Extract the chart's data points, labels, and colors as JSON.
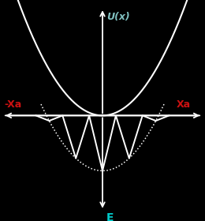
{
  "background_color": "#000000",
  "parabola_color": "#ffffff",
  "comb_color": "#ffffff",
  "dotted_parabola_color": "#ffffff",
  "axis_color": "#ffffff",
  "title_text": "U(x)",
  "title_color": "#80c0c0",
  "xlabel_pos_text": "Xa",
  "xlabel_neg_text": "-Xa",
  "xlabel_color": "#cc1111",
  "e_label_text": "E",
  "e_label_color": "#00cccc",
  "xa_value": 1.0,
  "parabola_scale": 0.75,
  "comb_teeth": 5,
  "comb_depth": -0.55,
  "figsize": [
    2.6,
    2.8
  ],
  "dpi": 100
}
